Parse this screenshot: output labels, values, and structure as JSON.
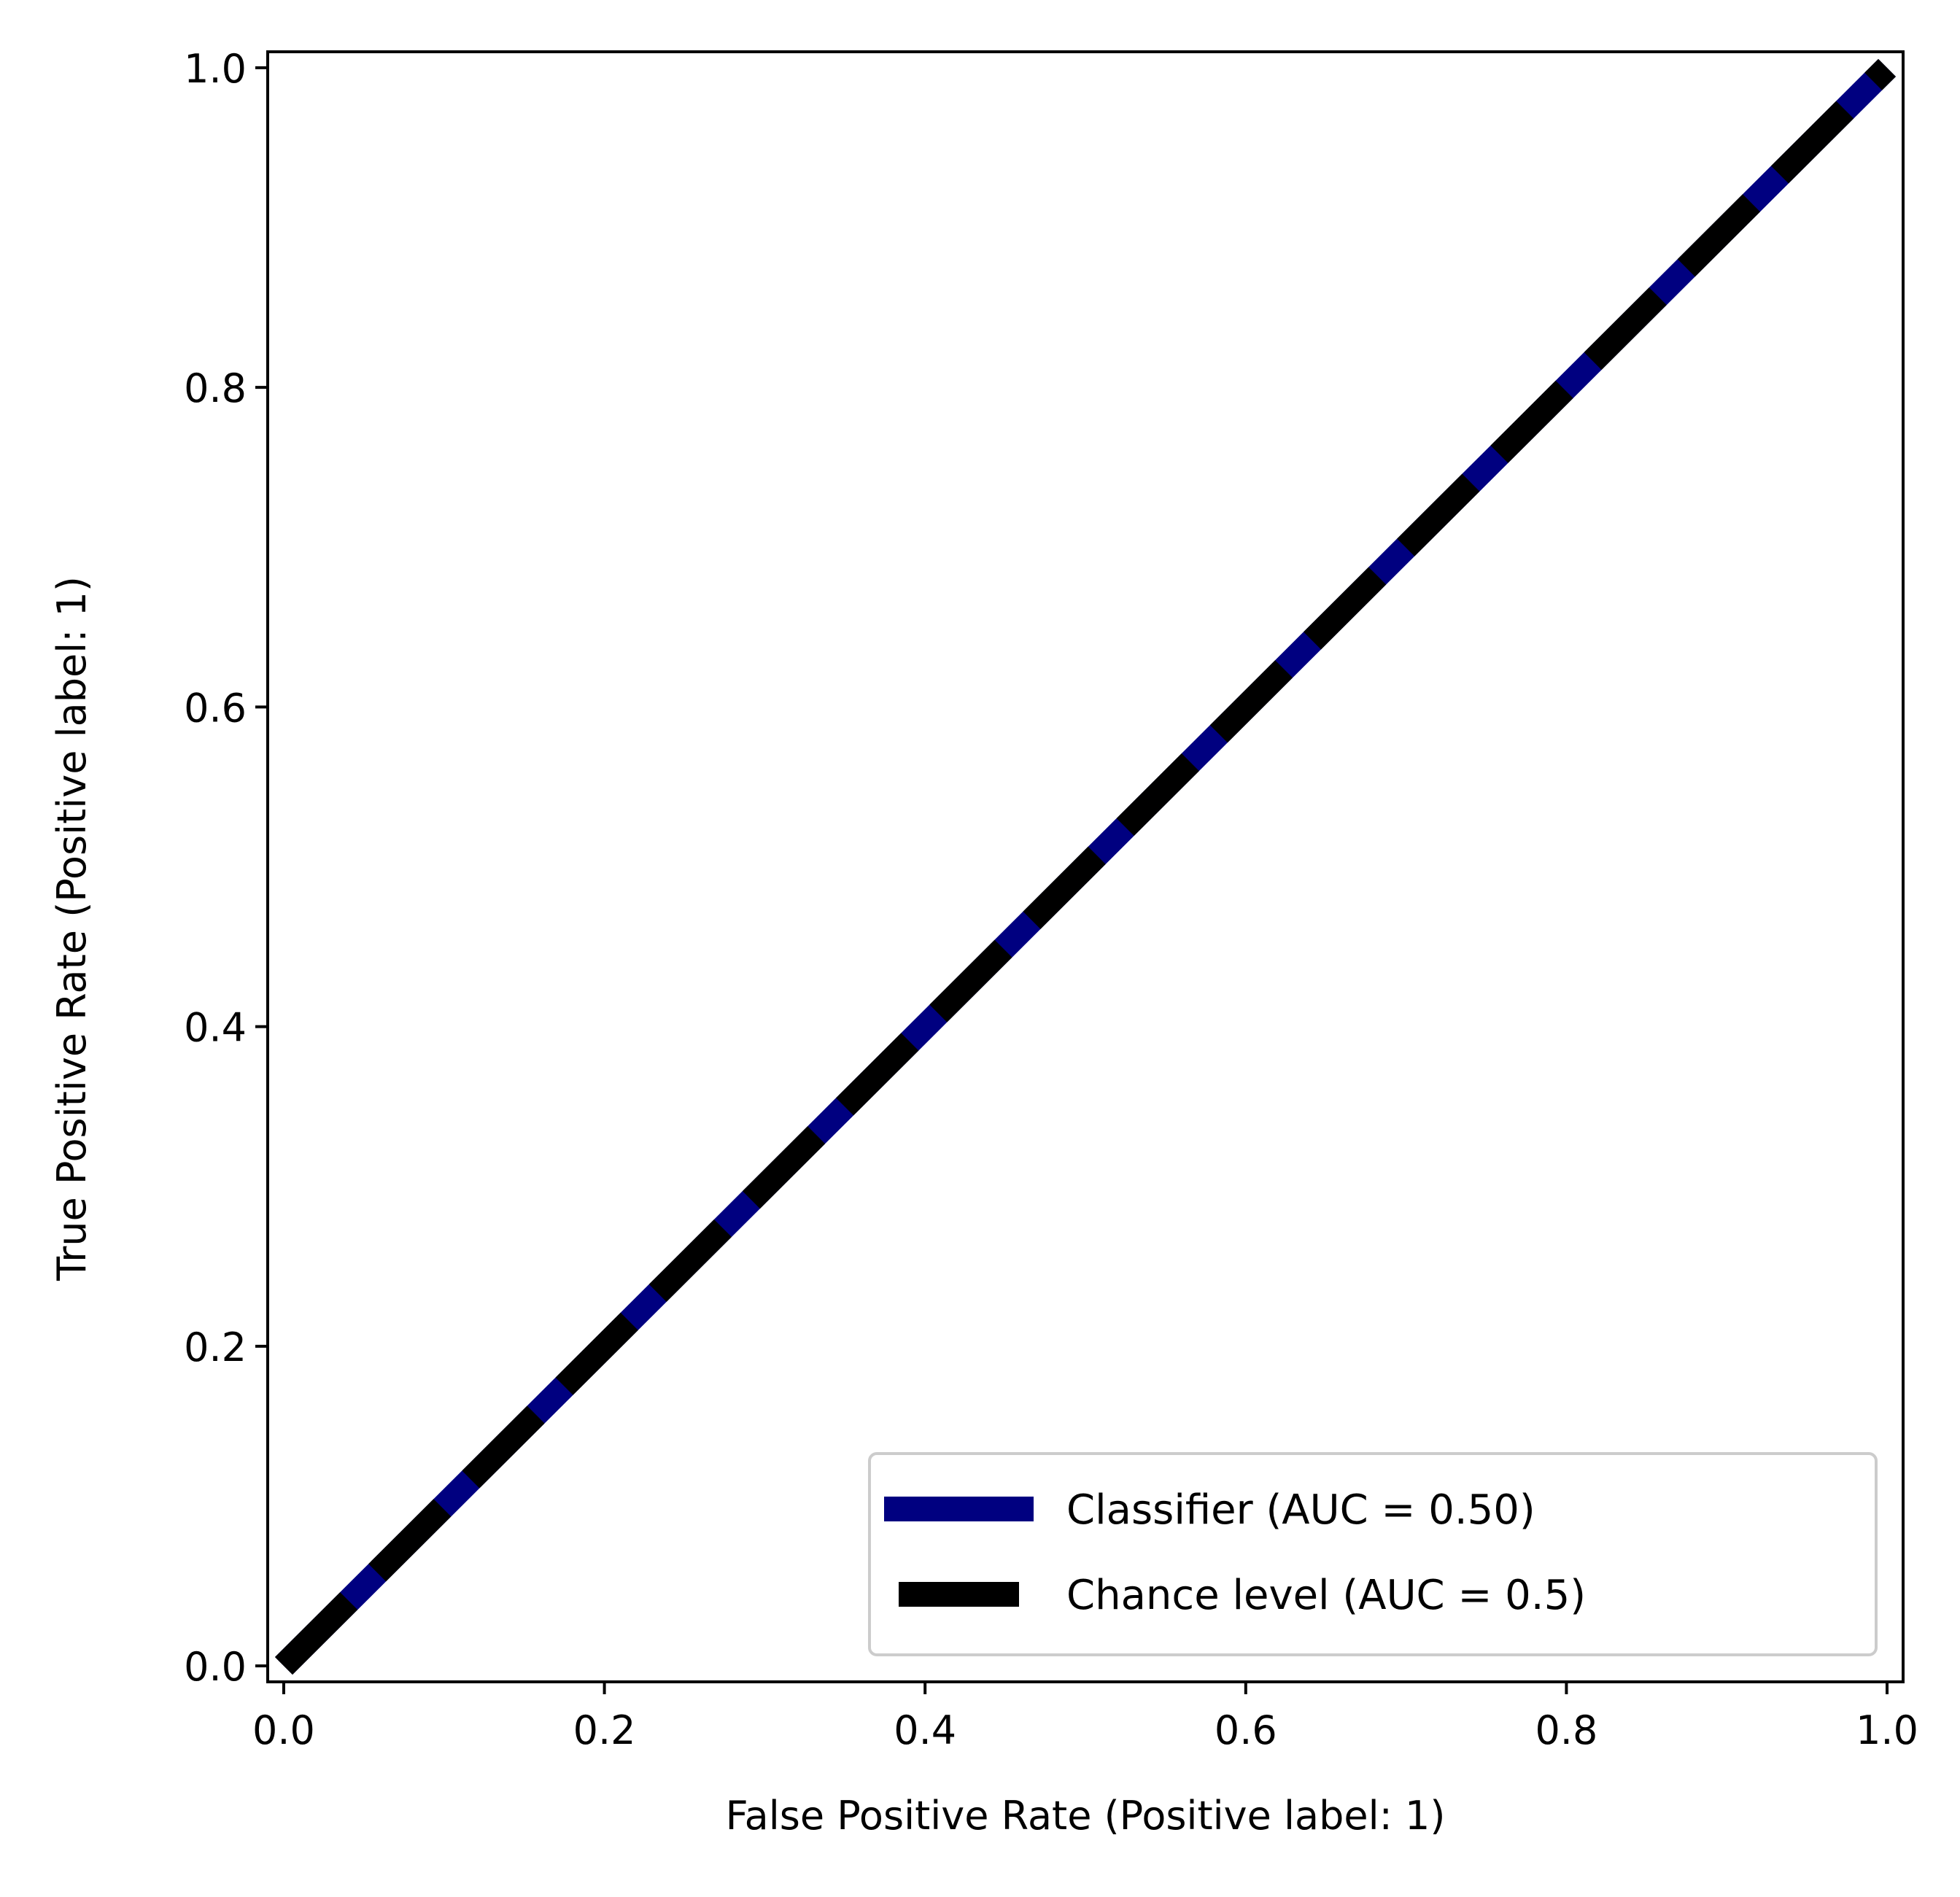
{
  "chart_data": {
    "type": "line",
    "title": "",
    "xlabel": "False Positive Rate (Positive label: 1)",
    "ylabel": "True Positive Rate (Positive label: 1)",
    "xlim": [
      -0.01,
      1.01
    ],
    "ylim": [
      -0.01,
      1.01
    ],
    "xticks": [
      0.0,
      0.2,
      0.4,
      0.6,
      0.8,
      1.0
    ],
    "xtick_labels": [
      "0.0",
      "0.2",
      "0.4",
      "0.6",
      "0.8",
      "1.0"
    ],
    "yticks": [
      0.0,
      0.2,
      0.4,
      0.6,
      0.8,
      1.0
    ],
    "ytick_labels": [
      "0.0",
      "0.2",
      "0.4",
      "0.6",
      "0.8",
      "1.0"
    ],
    "grid": false,
    "legend_position": "lower-right",
    "series": [
      {
        "name": "Classifier (AUC = 0.50)",
        "x": [
          0.0,
          1.0
        ],
        "y": [
          0.0,
          1.0
        ],
        "color": "#000080",
        "style": "solid"
      },
      {
        "name": "Chance level (AUC = 0.5)",
        "x": [
          0.0,
          1.0
        ],
        "y": [
          0.0,
          1.0
        ],
        "color": "#000000",
        "style": "dashed"
      }
    ]
  }
}
